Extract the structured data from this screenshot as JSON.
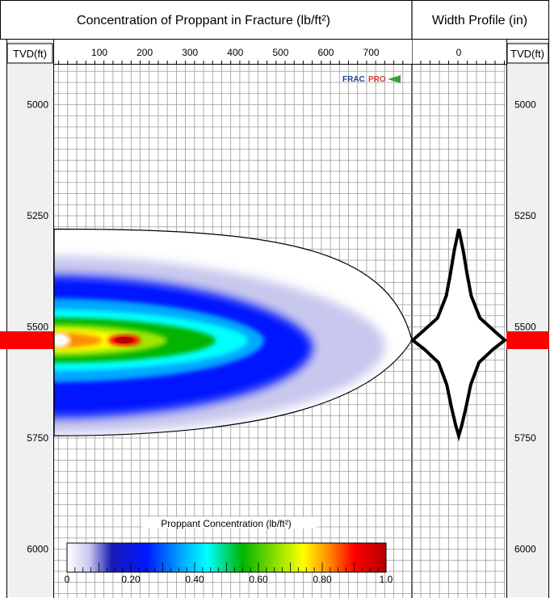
{
  "header": {
    "main_title": "Concentration of Proppant in Fracture (lb/ft²)",
    "width_title": "Width Profile (in)",
    "tvd_left": "TVD(ft)",
    "tvd_right": "TVD(ft)"
  },
  "logo": {
    "text_frac": "FRAC",
    "text_pro": "PRO"
  },
  "chart_data": {
    "type": "heatmap",
    "x_axis": {
      "ticks": [
        100,
        200,
        300,
        400,
        500,
        600,
        700
      ],
      "range": [
        0,
        790
      ]
    },
    "width_axis": {
      "ticks": [
        0
      ]
    },
    "depth_axis": {
      "ticks": [
        5000,
        5250,
        5500,
        5750,
        6000
      ],
      "range": [
        4910,
        6110
      ],
      "inverted": true
    },
    "fracture": {
      "top_depth": 5280,
      "bottom_depth": 5745,
      "max_length_ft": 790,
      "tip_depth": 5530
    },
    "peak_concentration": {
      "x": 155,
      "depth": 5530,
      "value": 1.0
    },
    "width_profile": {
      "depth": [
        5280,
        5330,
        5380,
        5430,
        5480,
        5510,
        5530,
        5550,
        5580,
        5630,
        5680,
        5720,
        5745
      ],
      "half_width": [
        0.0,
        0.1,
        0.18,
        0.27,
        0.46,
        0.78,
        1.0,
        0.75,
        0.44,
        0.26,
        0.16,
        0.07,
        0.0
      ]
    },
    "perforation_depth": 5530,
    "colorbar": {
      "label": "Proppant Concentration (lb/ft²)",
      "tick_labels": [
        "0",
        "0.20",
        "0.40",
        "0.60",
        "0.80",
        "1.0"
      ],
      "range": [
        0,
        1.0
      ],
      "stops": [
        {
          "value": 0.0,
          "color": "#ffffff"
        },
        {
          "value": 0.07,
          "color": "#c8c8ee"
        },
        {
          "value": 0.14,
          "color": "#1a1ab4"
        },
        {
          "value": 0.25,
          "color": "#0018ff"
        },
        {
          "value": 0.36,
          "color": "#00a8ff"
        },
        {
          "value": 0.44,
          "color": "#00ffff"
        },
        {
          "value": 0.55,
          "color": "#00b400"
        },
        {
          "value": 0.67,
          "color": "#a0e600"
        },
        {
          "value": 0.74,
          "color": "#ffff00"
        },
        {
          "value": 0.82,
          "color": "#ff8c00"
        },
        {
          "value": 0.9,
          "color": "#ff0000"
        },
        {
          "value": 1.0,
          "color": "#b40000"
        }
      ]
    }
  },
  "colors": {
    "perforation": "#ff0000",
    "axis_panel": "#f0f0f0",
    "grid": "#8c8c8c",
    "outline": "#000000"
  }
}
